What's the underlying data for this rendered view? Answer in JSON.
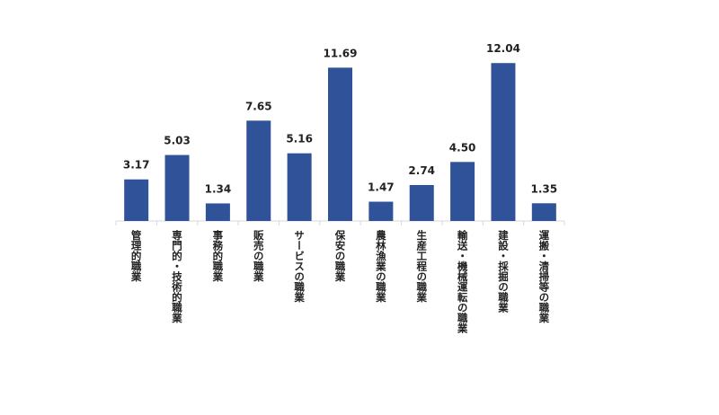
{
  "chart_data": {
    "type": "bar",
    "categories": [
      "管理的職業",
      "専門的・技術的職業",
      "事務的職業",
      "販売の職業",
      "サービスの職業",
      "保安の職業",
      "農林漁業の職業",
      "生産工程の職業",
      "輸送・機械運転の職業",
      "建設・採掘の職業",
      "運搬・清掃等の職業"
    ],
    "values": [
      3.17,
      5.03,
      1.34,
      7.65,
      5.16,
      11.69,
      1.47,
      2.74,
      4.5,
      12.04,
      1.35
    ],
    "value_labels": [
      "3.17",
      "5.03",
      "1.34",
      "7.65",
      "5.16",
      "11.69",
      "1.47",
      "2.74",
      "4.50",
      "12.04",
      "1.35"
    ],
    "color": "#2f5298"
  }
}
